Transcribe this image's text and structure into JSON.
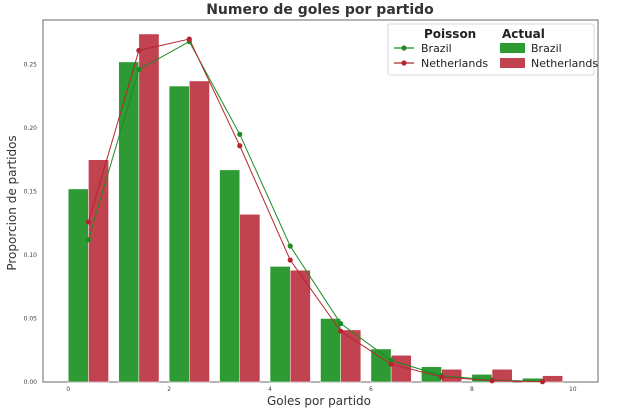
{
  "chart_data": {
    "type": "bar",
    "title": "Numero de goles por partido",
    "xlabel": "Goles por partido",
    "ylabel": "Proporcion de partidos",
    "xlim": [
      -0.5,
      10.5
    ],
    "ylim": [
      0,
      0.285
    ],
    "xticks": [
      0,
      2,
      4,
      6,
      8,
      10
    ],
    "yticks": [
      0.0,
      0.05,
      0.1,
      0.15,
      0.2,
      0.25
    ],
    "xtick_labels": [
      "0",
      "2",
      "4",
      "6",
      "8",
      "10"
    ],
    "ytick_labels": [
      "0.00",
      "0.05",
      "0.10",
      "0.15",
      "0.20",
      "0.25"
    ],
    "grid": false,
    "legend_position": "top-right",
    "legend_headers": {
      "poisson": "Poisson",
      "actual": "Actual"
    },
    "categories": [
      0,
      1,
      2,
      3,
      4,
      5,
      6,
      7,
      8,
      9
    ],
    "actual_series": [
      {
        "name": "Brazil",
        "color": "#2e9a33",
        "values": [
          0.152,
          0.252,
          0.233,
          0.167,
          0.091,
          0.05,
          0.026,
          0.012,
          0.006,
          0.003
        ]
      },
      {
        "name": "Netherlands",
        "color": "#c0434f",
        "values": [
          0.175,
          0.274,
          0.237,
          0.132,
          0.088,
          0.041,
          0.021,
          0.01,
          0.01,
          0.005
        ]
      }
    ],
    "poisson_series": [
      {
        "name": "Brazil",
        "color": "#1e8a24",
        "x": [
          0,
          1,
          2,
          3,
          4,
          5,
          6,
          7,
          8,
          9
        ],
        "values": [
          0.112,
          0.246,
          0.268,
          0.195,
          0.107,
          0.046,
          0.017,
          0.005,
          0.0015,
          0.0004
        ]
      },
      {
        "name": "Netherlands",
        "color": "#b52530",
        "x": [
          0,
          1,
          2,
          3,
          4,
          5,
          6,
          7,
          8,
          9
        ],
        "values": [
          0.126,
          0.261,
          0.27,
          0.186,
          0.096,
          0.04,
          0.014,
          0.004,
          0.001,
          0.0003
        ]
      }
    ]
  }
}
